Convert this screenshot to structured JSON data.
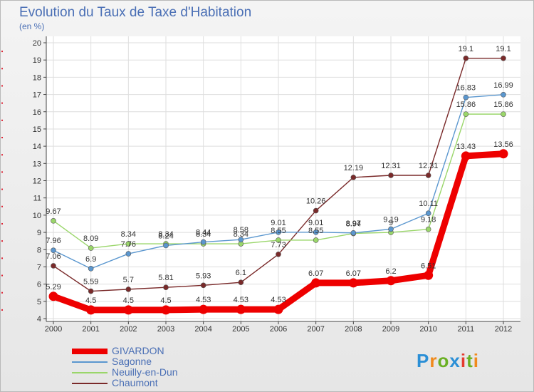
{
  "header": {
    "title": "Evolution du Taux de Taxe d'Habitation",
    "subtitle": "(en %)"
  },
  "logo": {
    "text": "Proxiti",
    "letters": [
      "P",
      "r",
      "o",
      "x",
      "i",
      "t",
      "i"
    ],
    "colors": [
      "#2b8fd6",
      "#f08a1c",
      "#6ab023",
      "#2b8fd6",
      "#e53a2e",
      "#6ab023",
      "#f08a1c"
    ]
  },
  "chart_data": {
    "type": "line",
    "categories": [
      "2000",
      "2001",
      "2002",
      "2003",
      "2004",
      "2005",
      "2006",
      "2007",
      "2008",
      "2009",
      "2010",
      "2011",
      "2012"
    ],
    "ylim": [
      4,
      20
    ],
    "yticks": [
      "4",
      "5",
      "6",
      "7",
      "8",
      "9",
      "10",
      "11",
      "12",
      "13",
      "14",
      "15",
      "16",
      "17",
      "18",
      "19",
      "20"
    ],
    "grid": true,
    "legend_position": "bottom-left",
    "series": [
      {
        "name": "GIVARDON",
        "color": "#ee0000",
        "values": [
          5.29,
          4.5,
          4.5,
          4.5,
          4.53,
          4.53,
          4.53,
          6.07,
          6.07,
          6.2,
          6.51,
          13.43,
          13.56
        ],
        "labels": [
          "5.29",
          "4.5",
          "4.5",
          "4.5",
          "4.53",
          "4.53",
          "4.53",
          "6.07",
          "6.07",
          "6.2",
          "6.51",
          "13.43",
          "13.56"
        ]
      },
      {
        "name": "Sagonne",
        "color": "#5b97cf",
        "values": [
          7.96,
          6.9,
          7.76,
          8.24,
          8.44,
          8.58,
          9.01,
          9.01,
          8.97,
          9.19,
          10.11,
          16.83,
          16.99
        ],
        "labels": [
          "7.96",
          "6.9",
          "7.76",
          "8.24",
          "8.44",
          "8.58",
          "9.01",
          "9.01",
          "8.97",
          "9.19",
          "10.11",
          "16.83",
          "16.99"
        ]
      },
      {
        "name": "Neuilly-en-Dun",
        "color": "#9ad66a",
        "values": [
          9.67,
          8.09,
          8.34,
          8.34,
          8.34,
          8.34,
          8.55,
          8.55,
          8.94,
          9.0,
          9.18,
          15.86,
          15.86
        ],
        "labels": [
          "9.67",
          "8.09",
          "8.34",
          "8.34",
          "8.34",
          "8.34",
          "8.55",
          "8.55",
          "8.94",
          "9",
          "9.18",
          "15.86",
          "15.86"
        ]
      },
      {
        "name": "Chaumont",
        "color": "#7a2a2a",
        "values": [
          7.06,
          5.59,
          5.7,
          5.81,
          5.93,
          6.1,
          7.73,
          10.26,
          12.19,
          12.31,
          12.31,
          19.1,
          19.1
        ],
        "labels": [
          "7.06",
          "5.59",
          "5.7",
          "5.81",
          "5.93",
          "6.1",
          "7.73",
          "10.26",
          "12.19",
          "12.31",
          "12.31",
          "19.1",
          "19.1"
        ]
      }
    ]
  }
}
